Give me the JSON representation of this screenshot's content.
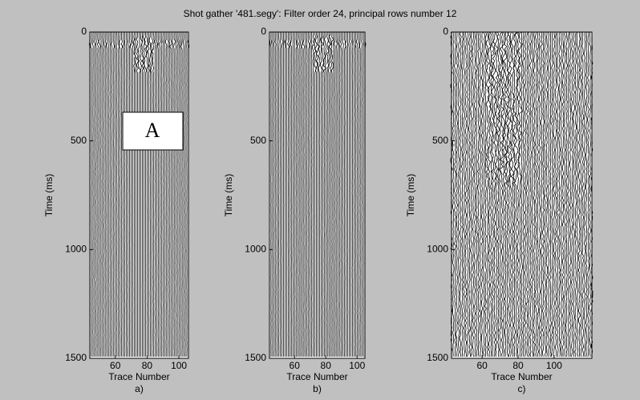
{
  "title": "Shot gather '481.segy': Filter order 24, principal rows number 12",
  "chart_data": [
    {
      "type": "seismic",
      "xlabel": "Trace Number",
      "ylabel": "Time (ms)",
      "caption": "a)",
      "annotation": "A",
      "xlim": [
        44,
        106
      ],
      "ylim": [
        0,
        1500
      ],
      "xticks": [
        60,
        80,
        100
      ],
      "yticks": [
        0,
        500,
        1000,
        1500
      ]
    },
    {
      "type": "seismic",
      "xlabel": "Trace Number",
      "ylabel": "Time (ms)",
      "caption": "b)",
      "xlim": [
        44,
        105
      ],
      "ylim": [
        0,
        1500
      ],
      "xticks": [
        60,
        80,
        100
      ],
      "yticks": [
        0,
        500,
        1000,
        1500
      ]
    },
    {
      "type": "seismic",
      "xlabel": "Trace Number",
      "ylabel": "Time (ms)",
      "caption": "c)",
      "xlim": [
        43,
        121
      ],
      "ylim": [
        0,
        1500
      ],
      "xticks": [
        60,
        80,
        100
      ],
      "yticks": [
        0,
        500,
        1000,
        1500
      ]
    }
  ]
}
